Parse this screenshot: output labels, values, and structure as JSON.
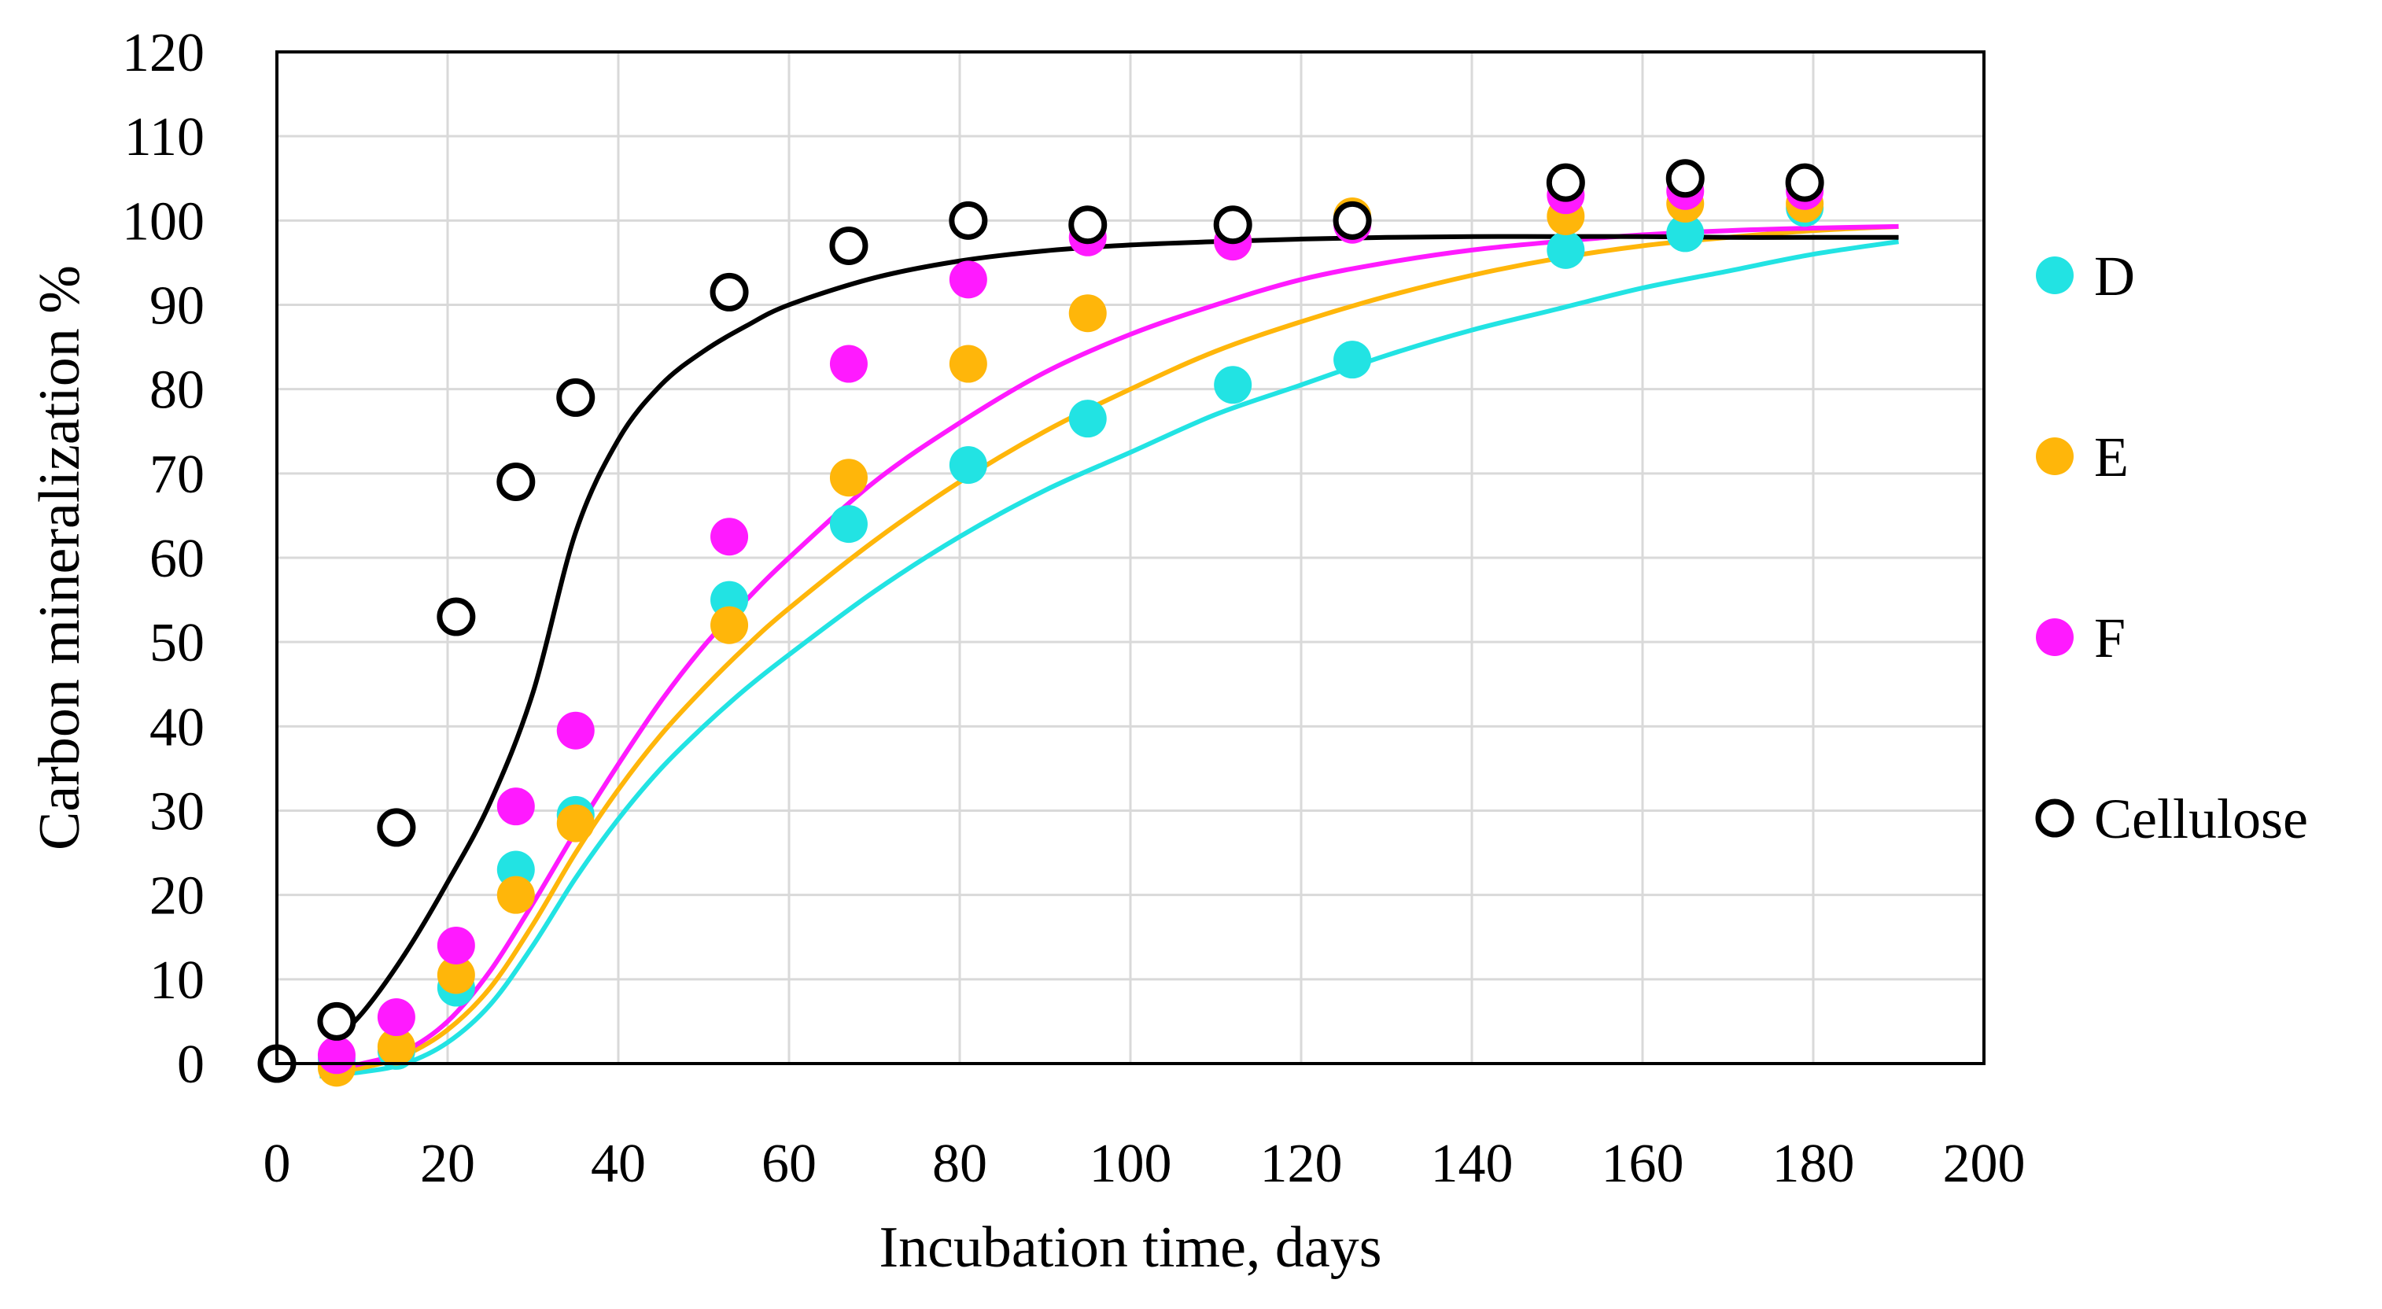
{
  "chart_data": {
    "type": "scatter",
    "title": "",
    "xlabel": "Incubation time, days",
    "ylabel": "Carbon mineralization %",
    "xlim": [
      0,
      200
    ],
    "ylim": [
      0,
      120
    ],
    "xticks": [
      0,
      20,
      40,
      60,
      80,
      100,
      120,
      140,
      160,
      180,
      200
    ],
    "yticks": [
      0,
      10,
      20,
      30,
      40,
      50,
      60,
      70,
      80,
      90,
      100,
      110,
      120
    ],
    "grid": true,
    "legend_position": "right",
    "series": [
      {
        "name": "D",
        "color": "#22e3e3",
        "marker": "filled-circle",
        "x": [
          0,
          7,
          14,
          21,
          28,
          35,
          53,
          67,
          81,
          95,
          112,
          126,
          151,
          165,
          179
        ],
        "y": [
          0,
          0.5,
          1.5,
          9,
          23,
          29.5,
          55,
          64,
          71,
          76.5,
          80.5,
          83.5,
          96.5,
          98.5,
          101.5
        ],
        "fit_x": [
          5,
          10,
          15,
          20,
          25,
          30,
          35,
          40,
          45,
          50,
          55,
          60,
          70,
          80,
          90,
          100,
          110,
          120,
          130,
          140,
          150,
          160,
          170,
          180,
          190
        ],
        "fit_y": [
          -1.5,
          -1,
          0,
          2.5,
          7,
          14,
          22,
          29,
          35,
          40,
          44.5,
          48.5,
          56,
          62.5,
          68,
          72.5,
          77,
          80.5,
          84,
          87,
          89.5,
          92,
          94,
          96,
          97.5
        ]
      },
      {
        "name": "E",
        "color": "#ffb60a",
        "marker": "filled-circle",
        "x": [
          0,
          7,
          14,
          21,
          28,
          35,
          53,
          67,
          81,
          95,
          112,
          126,
          151,
          165,
          179
        ],
        "y": [
          0,
          -0.5,
          2,
          10.5,
          20,
          28.5,
          52,
          69.5,
          83,
          89,
          97.5,
          100.5,
          100.5,
          102,
          102
        ],
        "fit_x": [
          5,
          10,
          15,
          20,
          25,
          30,
          35,
          40,
          45,
          50,
          55,
          60,
          70,
          80,
          90,
          100,
          110,
          120,
          130,
          140,
          150,
          160,
          170,
          180,
          190
        ],
        "fit_y": [
          -1,
          -0.5,
          1,
          4,
          9,
          16.5,
          25,
          32.5,
          39,
          44.5,
          49.5,
          54,
          62,
          69,
          75,
          80,
          84.5,
          88,
          91,
          93.5,
          95.5,
          97,
          98,
          98.8,
          99.3
        ]
      },
      {
        "name": "F",
        "color": "#ff1aff",
        "marker": "filled-circle",
        "x": [
          0,
          7,
          14,
          21,
          28,
          35,
          53,
          67,
          81,
          95,
          112,
          126,
          151,
          165,
          179
        ],
        "y": [
          0,
          1,
          5.5,
          14,
          30.5,
          39.5,
          62.5,
          83,
          93,
          98,
          97.5,
          99.5,
          103,
          103.5,
          103.5
        ],
        "fit_x": [
          5,
          10,
          15,
          20,
          25,
          30,
          35,
          40,
          45,
          50,
          55,
          60,
          70,
          80,
          90,
          100,
          110,
          120,
          130,
          140,
          150,
          160,
          170,
          180,
          190
        ],
        "fit_y": [
          -1,
          0,
          1.5,
          5,
          11,
          19,
          27.5,
          35.5,
          43,
          49.5,
          55,
          60,
          69,
          76,
          82,
          86.5,
          90,
          93,
          95,
          96.5,
          97.5,
          98.3,
          98.8,
          99.1,
          99.3
        ]
      },
      {
        "name": "Cellulose",
        "color": "#000000",
        "marker": "open-circle",
        "x": [
          0,
          7,
          14,
          21,
          28,
          35,
          53,
          67,
          81,
          95,
          112,
          126,
          151,
          165,
          179
        ],
        "y": [
          0,
          5,
          28,
          53,
          69,
          79,
          91.5,
          97,
          100,
          99.5,
          99.5,
          100,
          104.5,
          105,
          104.5
        ],
        "fit_x": [
          5,
          10,
          15,
          20,
          25,
          30,
          35,
          40,
          45,
          50,
          55,
          60,
          70,
          80,
          90,
          100,
          110,
          120,
          130,
          140,
          150,
          160,
          170,
          180,
          190
        ],
        "fit_y": [
          1,
          6,
          13,
          21.5,
          31,
          44,
          63,
          74,
          80.5,
          84.5,
          87.5,
          90,
          93.2,
          95.2,
          96.4,
          97.1,
          97.5,
          97.8,
          98,
          98.1,
          98.1,
          98.1,
          98,
          98,
          98
        ]
      }
    ]
  }
}
